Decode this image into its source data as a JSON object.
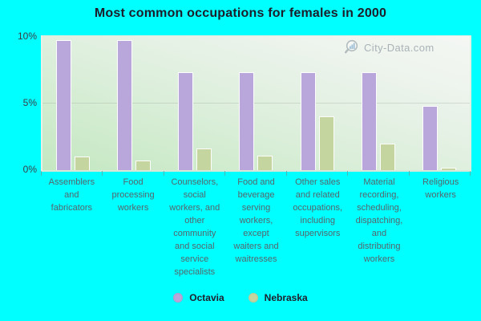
{
  "title": "Most common occupations for females in 2000",
  "watermark": {
    "text": "City-Data.com"
  },
  "colors": {
    "page_background": "#00ffff",
    "octavia_bar": "#b9a6da",
    "nebraska_bar": "#c5d5a0",
    "plot_gradient_bottom_left": "#c4e8c1",
    "plot_gradient_top_right": "#f4f7f3",
    "title_text": "#1c1c2a",
    "category_text": "#55656d",
    "watermark_text": "#97a2a8"
  },
  "chart_data": {
    "type": "bar",
    "title": "Most common occupations for females in 2000",
    "categories": [
      "Assemblers and fabricators",
      "Food processing workers",
      "Counselors, social workers, and other community and social service specialists",
      "Food and beverage serving workers, except waiters and waitresses",
      "Other sales and related occupations, including supervisors",
      "Material recording, scheduling, dispatching, and distributing workers",
      "Religious workers"
    ],
    "series": [
      {
        "name": "Octavia",
        "color": "#b9a6da",
        "values": [
          9.7,
          9.7,
          7.3,
          7.3,
          7.3,
          7.3,
          4.8
        ]
      },
      {
        "name": "Nebraska",
        "color": "#c5d5a0",
        "values": [
          1.0,
          0.7,
          1.6,
          1.1,
          4.0,
          2.0,
          0.2
        ]
      }
    ],
    "xlabel": "",
    "ylabel": "",
    "ylim": [
      0,
      10
    ],
    "yticks": [
      "0%",
      "5%",
      "10%"
    ],
    "grid": "horizontal line at 5%",
    "legend_position": "bottom"
  }
}
